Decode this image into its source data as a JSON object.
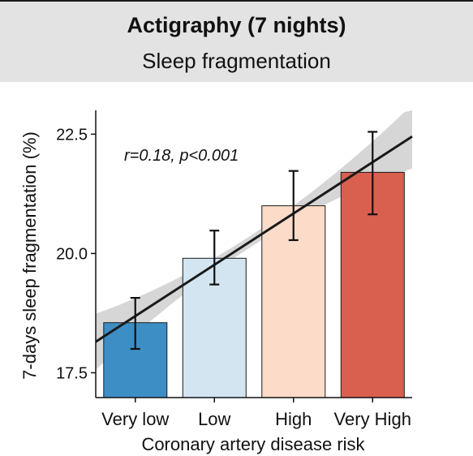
{
  "header": {
    "title": "Actigraphy (7 nights)",
    "subtitle": "Sleep fragmentation"
  },
  "chart_data": {
    "type": "bar",
    "title": "Actigraphy (7 nights)",
    "subtitle": "Sleep fragmentation",
    "xlabel": "Coronary artery disease risk",
    "ylabel": "7-days sleep fragmentation (%)",
    "categories": [
      "Very low",
      "Low",
      "High",
      "Very High"
    ],
    "values": [
      18.55,
      19.9,
      21.0,
      21.7
    ],
    "error_low": [
      18.0,
      19.35,
      20.28,
      20.82
    ],
    "error_high": [
      19.07,
      20.48,
      21.73,
      22.55
    ],
    "bar_colors": [
      "#3d8ec4",
      "#d2e5f1",
      "#fcdcc8",
      "#d9604f"
    ],
    "ylim": [
      16.98,
      23.0
    ],
    "yticks": [
      "17.5",
      "20.0",
      "22.5"
    ],
    "regression": {
      "y_start": 18.15,
      "y_end": 22.45,
      "band_color": "#d6d6d6",
      "line_color": "#1a1a1a"
    },
    "annotation": "r=0.18, p<0.001",
    "grid": false,
    "legend": "none"
  }
}
